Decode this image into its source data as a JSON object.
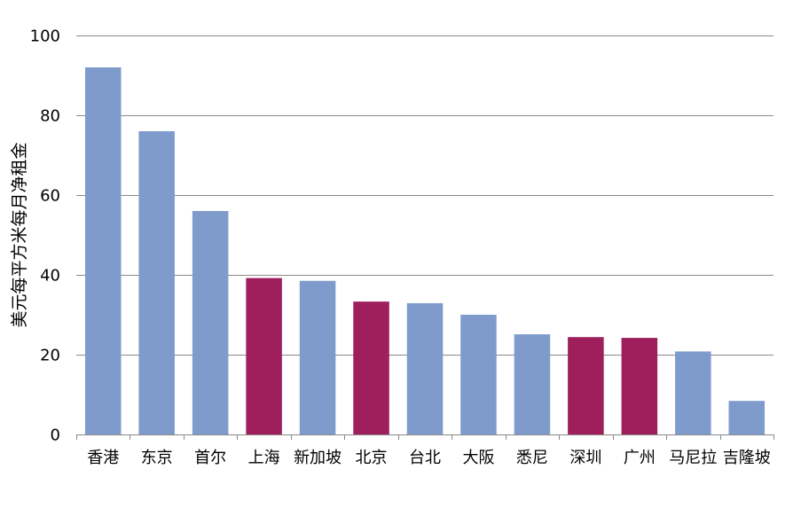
{
  "chart_data": {
    "type": "bar",
    "ylabel": "美元每平方米每月净租金",
    "xlabel": "",
    "ylim": [
      0,
      100
    ],
    "yticks": [
      0,
      20,
      40,
      60,
      80,
      100
    ],
    "grid": true,
    "categories": [
      "香港",
      "东京",
      "首尔",
      "上海",
      "新加坡",
      "北京",
      "台北",
      "大阪",
      "悉尼",
      "深圳",
      "广州",
      "马尼拉",
      "吉隆坡"
    ],
    "values": [
      92,
      76,
      56,
      39.2,
      38.5,
      33.3,
      32.9,
      30,
      25.1,
      24.4,
      24.2,
      20.8,
      8.4
    ],
    "bar_colors": [
      "#7f9bcc",
      "#7f9bcc",
      "#7f9bcc",
      "#9e1f5c",
      "#7f9bcc",
      "#9e1f5c",
      "#7f9bcc",
      "#7f9bcc",
      "#7f9bcc",
      "#9e1f5c",
      "#9e1f5c",
      "#7f9bcc",
      "#7f9bcc"
    ]
  },
  "colors": {
    "default_bar": "#7f9bcc",
    "highlight_bar": "#9e1f5c",
    "gridline": "#898989",
    "axis": "#898989"
  }
}
